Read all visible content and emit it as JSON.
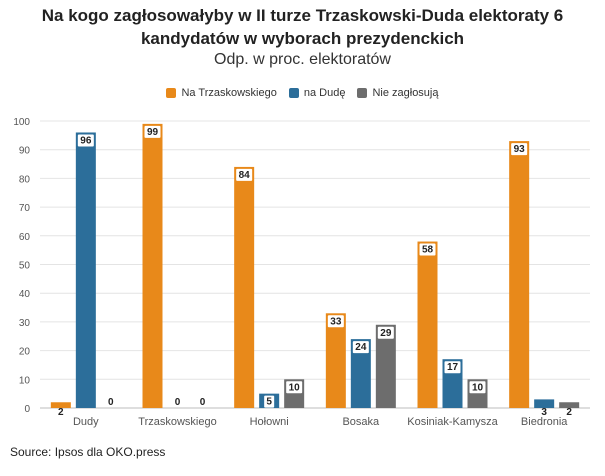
{
  "chart_data": {
    "type": "bar",
    "title_line1": "Na kogo zagłosowałyby w II turze Trzaskowski-Duda elektoraty 6",
    "title_line2": "kandydatów w wyborach prezydenckich",
    "subtitle": "Odp. w proc. elektoratów",
    "categories": [
      "Dudy",
      "Trzaskowskiego",
      "Hołowni",
      "Bosaka",
      "Kosiniak-Kamysza",
      "Biedronia"
    ],
    "series": [
      {
        "name": "Na Trzaskowskiego",
        "color": "#E8891A",
        "values": [
          2,
          99,
          84,
          33,
          58,
          93
        ]
      },
      {
        "name": "na Dudę",
        "color": "#2C6E9A",
        "values": [
          96,
          0,
          5,
          24,
          17,
          3
        ]
      },
      {
        "name": "Nie zagłosują",
        "color": "#6D6D6D",
        "values": [
          0,
          0,
          10,
          29,
          10,
          2
        ]
      }
    ],
    "ylim": [
      0,
      100
    ],
    "yticks": [
      0,
      10,
      20,
      30,
      40,
      50,
      60,
      70,
      80,
      90,
      100
    ],
    "grid": true,
    "legend_position": "top"
  },
  "source": "Source: Ipsos dla OKO.press"
}
